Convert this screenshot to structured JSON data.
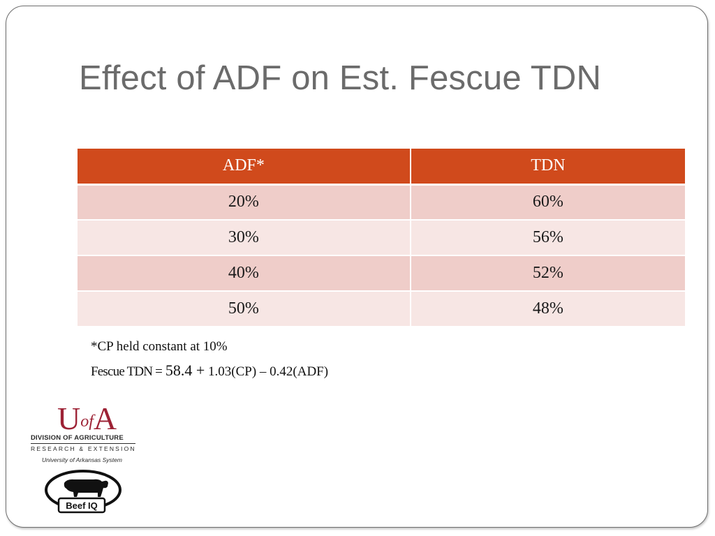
{
  "slide": {
    "title": "Effect of ADF on Est. Fescue TDN"
  },
  "table": {
    "headers": [
      "ADF*",
      "TDN"
    ],
    "rows": [
      [
        "20%",
        "60%"
      ],
      [
        "30%",
        "56%"
      ],
      [
        "40%",
        "52%"
      ],
      [
        "50%",
        "48%"
      ]
    ]
  },
  "notes": {
    "footnote": "*CP held constant at 10%",
    "formula_label": "Fescue TDN =",
    "formula_constant": "58.4 +",
    "formula_terms": "1.03(CP) – 0.42(ADF)"
  },
  "logos": {
    "uofa": {
      "mark_u": "U",
      "mark_of": "of",
      "mark_a": "A",
      "line1": "DIVISION OF AGRICULTURE",
      "line2": "RESEARCH & EXTENSION",
      "line3": "University of Arkansas System",
      "color": "#9d2235"
    },
    "beef_iq": {
      "text": "Beef IQ"
    }
  },
  "colors": {
    "header": "#d04a1c",
    "row_odd": "#efcdc9",
    "row_even": "#f7e6e4",
    "title": "#6b6b6b"
  }
}
